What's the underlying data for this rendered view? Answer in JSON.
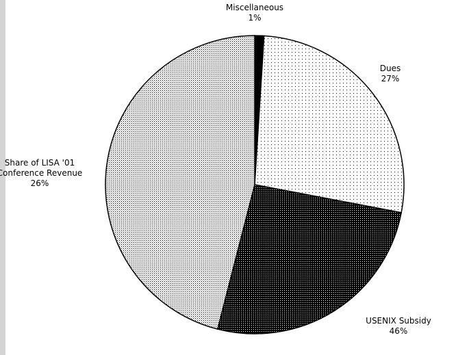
{
  "chart_data": {
    "type": "pie",
    "categories": [
      "Miscellaneous",
      "Dues",
      "Share of LISA '01 Conference Revenue",
      "USENIX Subsidy"
    ],
    "values": [
      1,
      27,
      26,
      46
    ],
    "value_labels": [
      "1%",
      "27%",
      "26%",
      "46%"
    ],
    "patterns": [
      "solid",
      "sparse-dots",
      "dark-dots",
      "fine-dots"
    ]
  }
}
